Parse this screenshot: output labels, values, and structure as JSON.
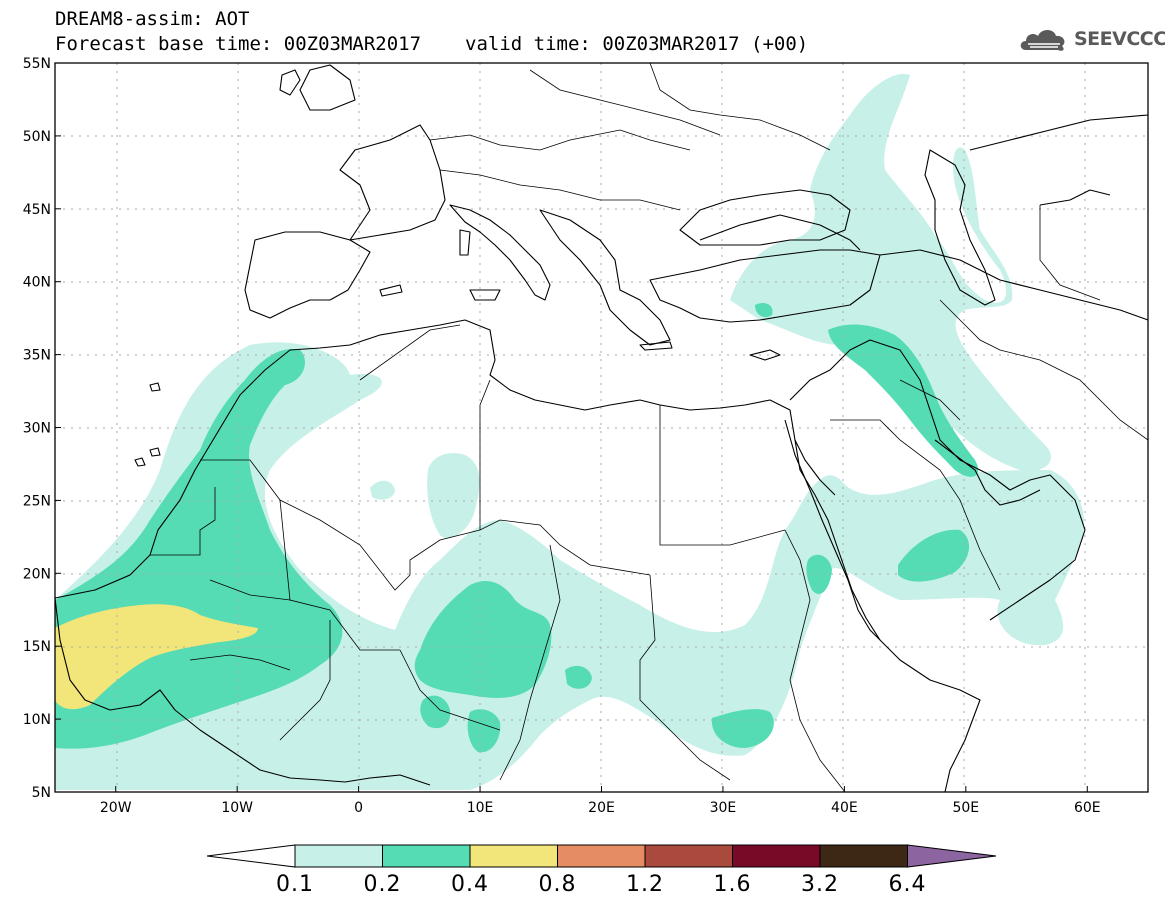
{
  "title": {
    "line1": "DREAM8-assim: AOT",
    "base_time": "Forecast base time: 00Z03MAR2017",
    "valid_time": "valid time: 00Z03MAR2017 (+00)"
  },
  "logo": {
    "text": "SEEVCCC",
    "icon": "cloud-icon"
  },
  "axes": {
    "lat_labels": [
      "55N",
      "50N",
      "45N",
      "40N",
      "35N",
      "30N",
      "25N",
      "20N",
      "15N",
      "10N",
      "5N"
    ],
    "lon_labels": [
      "20W",
      "10W",
      "0",
      "10E",
      "20E",
      "30E",
      "40E",
      "50E",
      "60E"
    ],
    "lon_range": [
      -25,
      65
    ],
    "lat_range": [
      5,
      55
    ]
  },
  "colorbar": {
    "levels": [
      "0.1",
      "0.2",
      "0.4",
      "0.8",
      "1.2",
      "1.6",
      "3.2",
      "6.4"
    ],
    "colors": [
      "#ffffff",
      "#c6f0e8",
      "#56dcb4",
      "#f2e57a",
      "#e68c64",
      "#aa4a3c",
      "#780a28",
      "#3c2814",
      "#8c64a0"
    ]
  },
  "chart_data": {
    "type": "heatmap",
    "title": "DREAM8-assim: AOT",
    "variable": "AOT",
    "xlabel": "",
    "ylabel": "",
    "xlim": [
      -25,
      65
    ],
    "ylim": [
      5,
      55
    ],
    "x_ticks": [
      "20W",
      "10W",
      "0",
      "10E",
      "20E",
      "30E",
      "40E",
      "50E",
      "60E"
    ],
    "y_ticks": [
      "55N",
      "50N",
      "45N",
      "40N",
      "35N",
      "30N",
      "25N",
      "20N",
      "15N",
      "10N",
      "5N"
    ],
    "contour_levels": [
      0.1,
      0.2,
      0.4,
      0.8,
      1.2,
      1.6,
      3.2,
      6.4
    ],
    "grid": true
  }
}
